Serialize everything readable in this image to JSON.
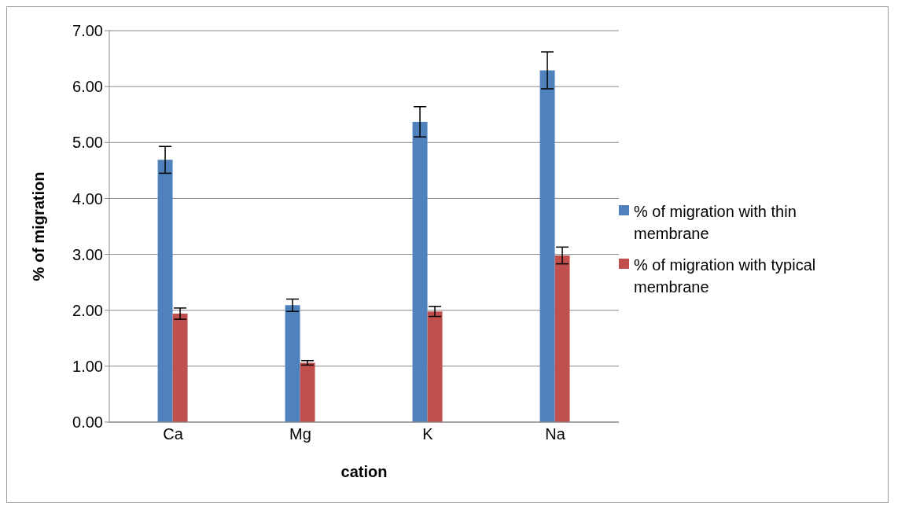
{
  "chart_data": {
    "type": "bar",
    "xlabel": "cation",
    "ylabel": "% of migration",
    "categories": [
      "Ca",
      "Mg",
      "K",
      "Na"
    ],
    "series": [
      {
        "name": "% of migration with thin membrane",
        "color": "#4f81bd",
        "values": [
          4.69,
          2.09,
          5.37,
          6.29
        ],
        "errors": [
          0.24,
          0.11,
          0.27,
          0.33
        ]
      },
      {
        "name": "% of migration with typical membrane",
        "color": "#c0504d",
        "values": [
          1.94,
          1.06,
          1.98,
          2.98
        ],
        "errors": [
          0.1,
          0.04,
          0.09,
          0.15
        ]
      }
    ],
    "ylim": [
      0,
      7
    ],
    "yticks": [
      {
        "value": 0,
        "label": "0.00"
      },
      {
        "value": 1,
        "label": "1.00"
      },
      {
        "value": 2,
        "label": "2.00"
      },
      {
        "value": 3,
        "label": "3.00"
      },
      {
        "value": 4,
        "label": "4.00"
      },
      {
        "value": 5,
        "label": "5.00"
      },
      {
        "value": 6,
        "label": "6.00"
      },
      {
        "value": 7,
        "label": "7.00"
      }
    ],
    "grid": "y",
    "legend": "right"
  }
}
